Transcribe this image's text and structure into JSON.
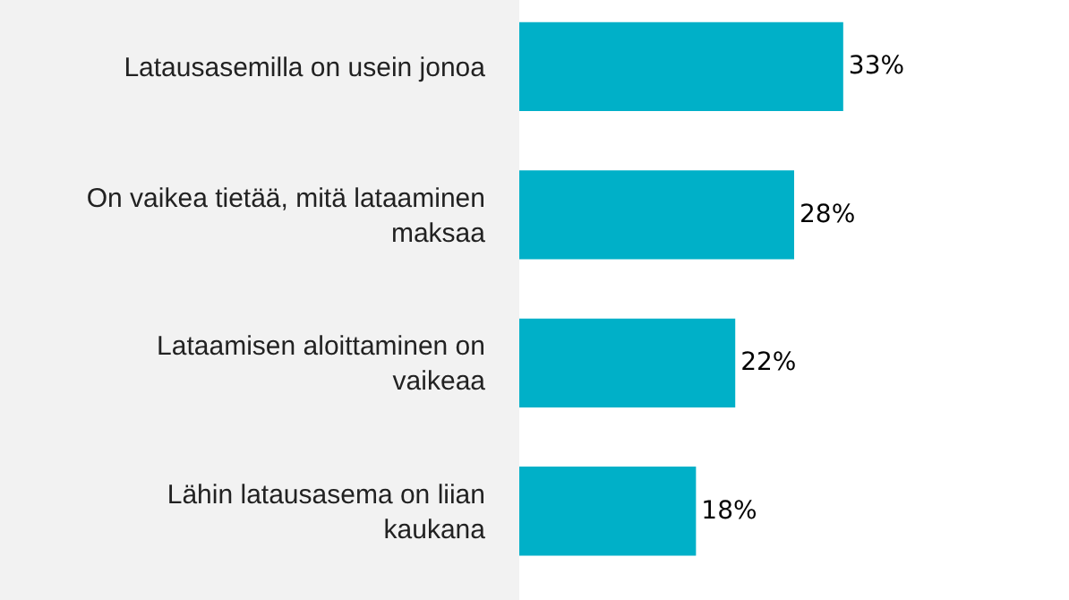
{
  "chart_data": {
    "type": "bar",
    "orientation": "horizontal",
    "categories": [
      "Latausasemilla on usein jonoa",
      "On vaikea tietää, mitä lataaminen maksaa",
      "Lataamisen aloittaminen on vaikeaa",
      "Lähin latausasema on liian kaukana"
    ],
    "values": [
      33,
      28,
      22,
      18
    ],
    "value_labels": [
      "33%",
      "28%",
      "22%",
      "18%"
    ],
    "color": "#00b0c8",
    "xlim": [
      0,
      56
    ],
    "tick_labels": "y",
    "grid": false,
    "legend": false
  }
}
